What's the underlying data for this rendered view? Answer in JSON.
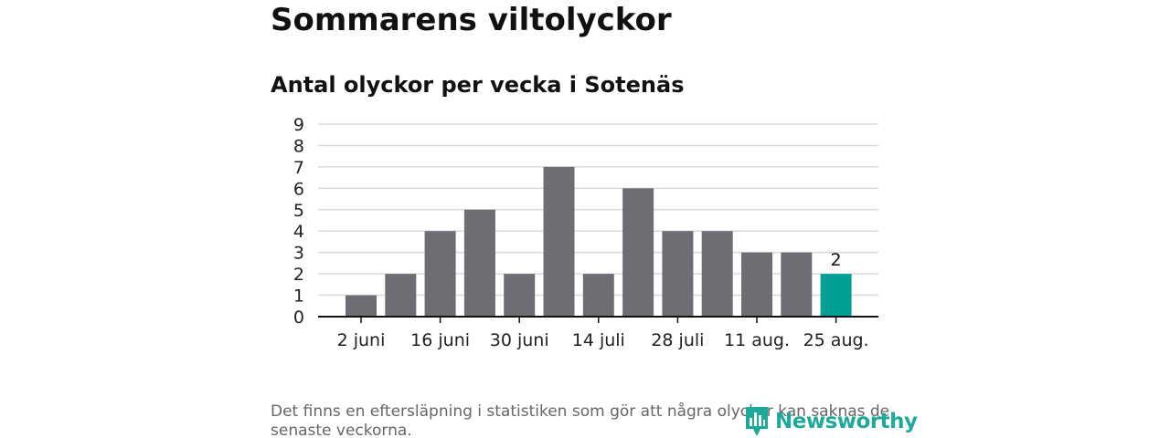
{
  "title": "Sommarens viltolyckor",
  "subtitle": "Antal olyckor per vecka i Sotenäs",
  "footnote": "Det finns en eftersläpning i statistiken som gör att några olyckor kan saknas de senaste veckorna.",
  "brand": {
    "name": "Newsworthy",
    "icon": "newsworthy-bar-chart-logo-icon",
    "color": "#1fa99b"
  },
  "colors": {
    "bar": "#6e6d73",
    "highlight": "#00a096",
    "grid": "#d9d9d9",
    "axis": "#111111"
  },
  "chart_data": {
    "type": "bar",
    "title": "Antal olyckor per vecka i Sotenäs",
    "xlabel": "",
    "ylabel": "",
    "ylim": [
      0,
      9
    ],
    "yticks": [
      0,
      1,
      2,
      3,
      4,
      5,
      6,
      7,
      8,
      9
    ],
    "grid": true,
    "x_tick_labels": [
      "2 juni",
      "16 juni",
      "30 juni",
      "14 juli",
      "28 juli",
      "11 aug.",
      "25 aug."
    ],
    "x_tick_every": 2,
    "values": [
      1,
      2,
      4,
      5,
      2,
      7,
      2,
      6,
      4,
      4,
      3,
      3,
      2
    ],
    "highlight_index": 12,
    "annotations": [
      {
        "index": 12,
        "text": "2"
      }
    ]
  }
}
